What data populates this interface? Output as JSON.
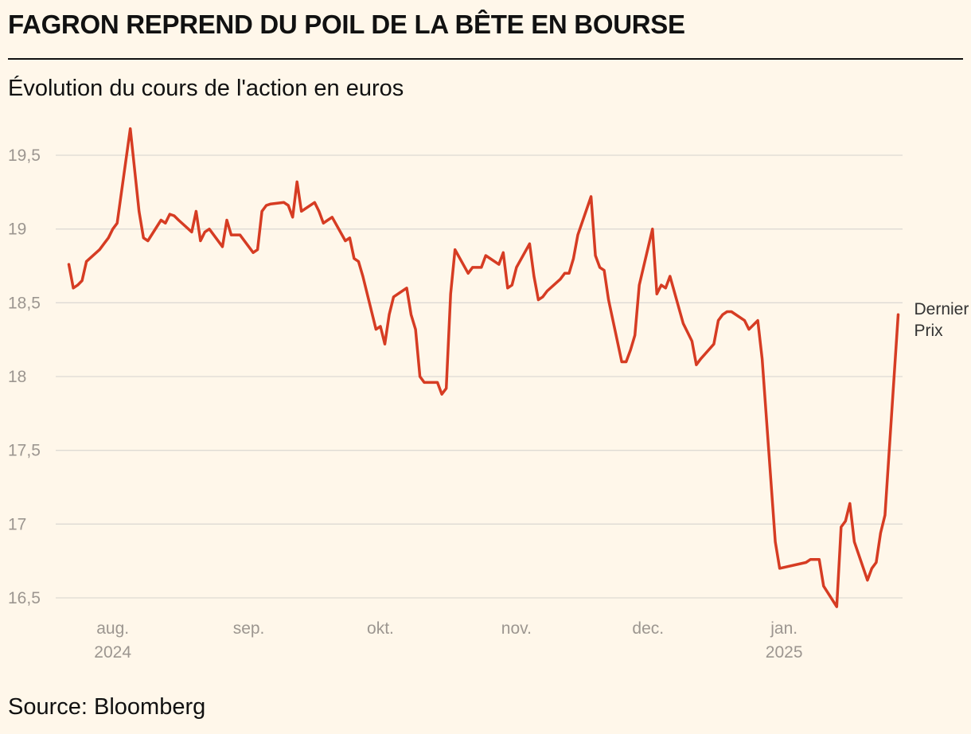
{
  "header": {
    "title": "FAGRON REPREND DU POIL DE LA BÊTE EN BOURSE",
    "subtitle": "Évolution du cours de l'action en euros"
  },
  "footer": {
    "source": "Bloomberg",
    "source_prefix": "Source: "
  },
  "colors": {
    "line": "#d63c23",
    "grid": "#dedad4",
    "background": "#fff7ea"
  },
  "chart_data": {
    "type": "line",
    "title": "FAGRON REPREND DU POIL DE LA BÊTE EN BOURSE",
    "ylabel": "Évolution du cours de l'action en euros",
    "xlabel": "",
    "ylim": [
      16.5,
      19.5
    ],
    "yticks": [
      {
        "value": 19.5,
        "label": "19,5"
      },
      {
        "value": 19,
        "label": "19"
      },
      {
        "value": 18.5,
        "label": "18,5"
      },
      {
        "value": 18,
        "label": "18"
      },
      {
        "value": 17.5,
        "label": "17,5"
      },
      {
        "value": 17,
        "label": "17"
      },
      {
        "value": 16.5,
        "label": "16,5"
      }
    ],
    "xlim": [
      "2024-07-19",
      "2025-01-28"
    ],
    "xticks": [
      {
        "date": "2024-08-01",
        "label": "aug.",
        "sublabel": "2024"
      },
      {
        "date": "2024-09-01",
        "label": "sep.",
        "sublabel": ""
      },
      {
        "date": "2024-10-01",
        "label": "okt.",
        "sublabel": ""
      },
      {
        "date": "2024-11-01",
        "label": "nov.",
        "sublabel": ""
      },
      {
        "date": "2024-12-01",
        "label": "dec.",
        "sublabel": ""
      },
      {
        "date": "2025-01-01",
        "label": "jan.",
        "sublabel": "2025"
      }
    ],
    "grid": true,
    "end_label": [
      "Dernier",
      "Prix"
    ],
    "series": [
      {
        "name": "",
        "points": [
          [
            "2024-07-22",
            18.76
          ],
          [
            "2024-07-23",
            18.6
          ],
          [
            "2024-07-24",
            18.62
          ],
          [
            "2024-07-25",
            18.65
          ],
          [
            "2024-07-26",
            18.78
          ],
          [
            "2024-07-29",
            18.86
          ],
          [
            "2024-07-30",
            18.9
          ],
          [
            "2024-07-31",
            18.94
          ],
          [
            "2024-08-01",
            19.0
          ],
          [
            "2024-08-02",
            19.04
          ],
          [
            "2024-08-05",
            19.68
          ],
          [
            "2024-08-06",
            19.4
          ],
          [
            "2024-08-07",
            19.12
          ],
          [
            "2024-08-08",
            18.94
          ],
          [
            "2024-08-09",
            18.92
          ],
          [
            "2024-08-12",
            19.06
          ],
          [
            "2024-08-13",
            19.04
          ],
          [
            "2024-08-14",
            19.1
          ],
          [
            "2024-08-15",
            19.09
          ],
          [
            "2024-08-16",
            19.06
          ],
          [
            "2024-08-19",
            18.98
          ],
          [
            "2024-08-20",
            19.12
          ],
          [
            "2024-08-21",
            18.92
          ],
          [
            "2024-08-22",
            18.98
          ],
          [
            "2024-08-23",
            19.0
          ],
          [
            "2024-08-26",
            18.88
          ],
          [
            "2024-08-27",
            19.06
          ],
          [
            "2024-08-28",
            18.96
          ],
          [
            "2024-08-29",
            18.96
          ],
          [
            "2024-08-30",
            18.96
          ],
          [
            "2024-09-02",
            18.84
          ],
          [
            "2024-09-03",
            18.86
          ],
          [
            "2024-09-04",
            19.12
          ],
          [
            "2024-09-05",
            19.16
          ],
          [
            "2024-09-06",
            19.17
          ],
          [
            "2024-09-09",
            19.18
          ],
          [
            "2024-09-10",
            19.16
          ],
          [
            "2024-09-11",
            19.08
          ],
          [
            "2024-09-12",
            19.32
          ],
          [
            "2024-09-13",
            19.12
          ],
          [
            "2024-09-16",
            19.18
          ],
          [
            "2024-09-17",
            19.12
          ],
          [
            "2024-09-18",
            19.04
          ],
          [
            "2024-09-19",
            19.06
          ],
          [
            "2024-09-20",
            19.08
          ],
          [
            "2024-09-23",
            18.92
          ],
          [
            "2024-09-24",
            18.94
          ],
          [
            "2024-09-25",
            18.8
          ],
          [
            "2024-09-26",
            18.78
          ],
          [
            "2024-09-27",
            18.68
          ],
          [
            "2024-09-30",
            18.32
          ],
          [
            "2024-10-01",
            18.34
          ],
          [
            "2024-10-02",
            18.22
          ],
          [
            "2024-10-03",
            18.42
          ],
          [
            "2024-10-04",
            18.54
          ],
          [
            "2024-10-07",
            18.6
          ],
          [
            "2024-10-08",
            18.42
          ],
          [
            "2024-10-09",
            18.32
          ],
          [
            "2024-10-10",
            18.0
          ],
          [
            "2024-10-11",
            17.96
          ],
          [
            "2024-10-14",
            17.96
          ],
          [
            "2024-10-15",
            17.88
          ],
          [
            "2024-10-16",
            17.92
          ],
          [
            "2024-10-17",
            18.56
          ],
          [
            "2024-10-18",
            18.86
          ],
          [
            "2024-10-21",
            18.7
          ],
          [
            "2024-10-22",
            18.74
          ],
          [
            "2024-10-23",
            18.74
          ],
          [
            "2024-10-24",
            18.74
          ],
          [
            "2024-10-25",
            18.82
          ],
          [
            "2024-10-28",
            18.76
          ],
          [
            "2024-10-29",
            18.84
          ],
          [
            "2024-10-30",
            18.6
          ],
          [
            "2024-10-31",
            18.62
          ],
          [
            "2024-11-01",
            18.74
          ],
          [
            "2024-11-04",
            18.9
          ],
          [
            "2024-11-05",
            18.68
          ],
          [
            "2024-11-06",
            18.52
          ],
          [
            "2024-11-07",
            18.54
          ],
          [
            "2024-11-08",
            18.58
          ],
          [
            "2024-11-11",
            18.66
          ],
          [
            "2024-11-12",
            18.7
          ],
          [
            "2024-11-13",
            18.7
          ],
          [
            "2024-11-14",
            18.8
          ],
          [
            "2024-11-15",
            18.96
          ],
          [
            "2024-11-18",
            19.22
          ],
          [
            "2024-11-19",
            18.82
          ],
          [
            "2024-11-20",
            18.74
          ],
          [
            "2024-11-21",
            18.72
          ],
          [
            "2024-11-22",
            18.52
          ],
          [
            "2024-11-25",
            18.1
          ],
          [
            "2024-11-26",
            18.1
          ],
          [
            "2024-11-27",
            18.18
          ],
          [
            "2024-11-28",
            18.28
          ],
          [
            "2024-11-29",
            18.62
          ],
          [
            "2024-12-02",
            19.0
          ],
          [
            "2024-12-03",
            18.56
          ],
          [
            "2024-12-04",
            18.62
          ],
          [
            "2024-12-05",
            18.6
          ],
          [
            "2024-12-06",
            18.68
          ],
          [
            "2024-12-09",
            18.36
          ],
          [
            "2024-12-10",
            18.3
          ],
          [
            "2024-12-11",
            18.24
          ],
          [
            "2024-12-12",
            18.08
          ],
          [
            "2024-12-13",
            18.12
          ],
          [
            "2024-12-16",
            18.22
          ],
          [
            "2024-12-17",
            18.38
          ],
          [
            "2024-12-18",
            18.42
          ],
          [
            "2024-12-19",
            18.44
          ],
          [
            "2024-12-20",
            18.44
          ],
          [
            "2024-12-23",
            18.38
          ],
          [
            "2024-12-24",
            18.32
          ],
          [
            "2024-12-26",
            18.38
          ],
          [
            "2024-12-27",
            18.12
          ],
          [
            "2024-12-30",
            16.88
          ],
          [
            "2024-12-31",
            16.7
          ],
          [
            "2025-01-06",
            16.74
          ],
          [
            "2025-01-07",
            16.76
          ],
          [
            "2025-01-08",
            16.76
          ],
          [
            "2025-01-09",
            16.76
          ],
          [
            "2025-01-10",
            16.58
          ],
          [
            "2025-01-13",
            16.44
          ],
          [
            "2025-01-14",
            16.98
          ],
          [
            "2025-01-15",
            17.02
          ],
          [
            "2025-01-16",
            17.14
          ],
          [
            "2025-01-17",
            16.88
          ],
          [
            "2025-01-20",
            16.62
          ],
          [
            "2025-01-21",
            16.7
          ],
          [
            "2025-01-22",
            16.74
          ],
          [
            "2025-01-23",
            16.94
          ],
          [
            "2025-01-24",
            17.06
          ],
          [
            "2025-01-27",
            18.42
          ]
        ]
      }
    ]
  }
}
